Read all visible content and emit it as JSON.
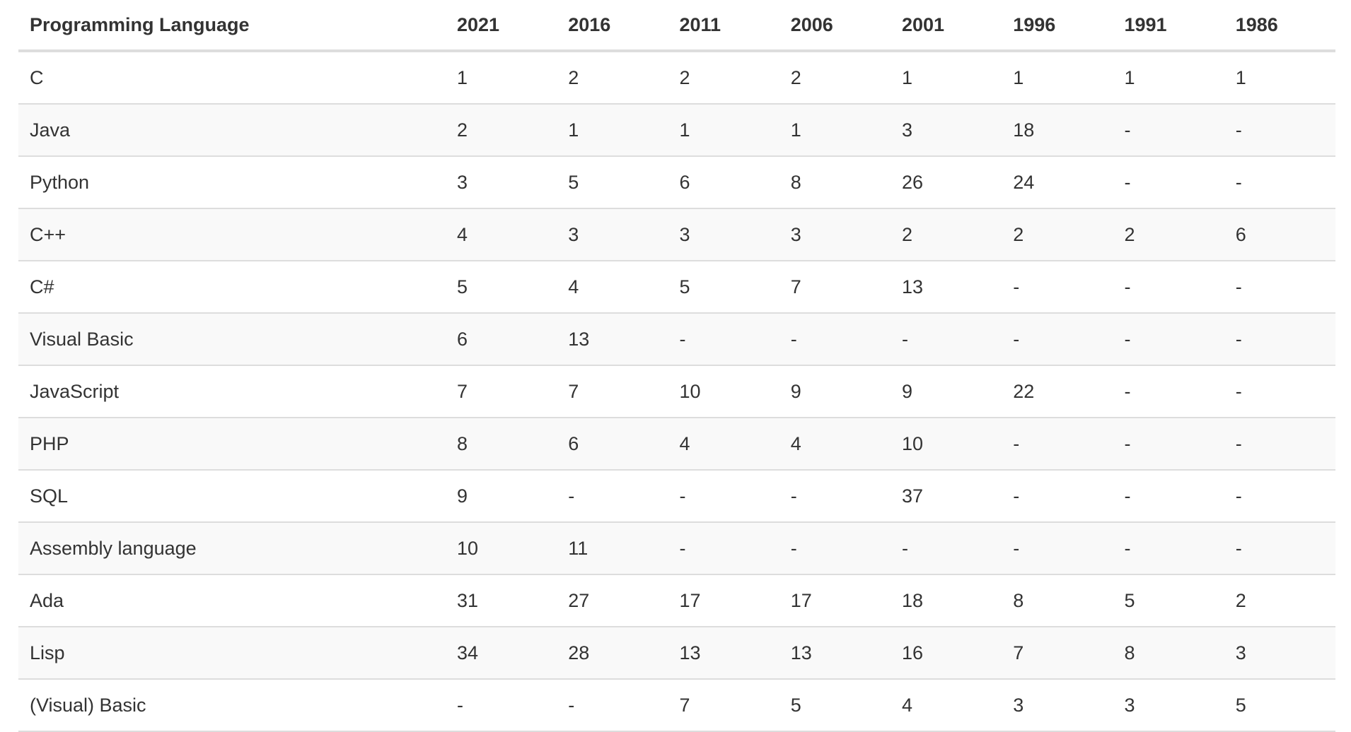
{
  "table": {
    "headers": [
      "Programming Language",
      "2021",
      "2016",
      "2011",
      "2006",
      "2001",
      "1996",
      "1991",
      "1986"
    ],
    "rows": [
      [
        "C",
        "1",
        "2",
        "2",
        "2",
        "1",
        "1",
        "1",
        "1"
      ],
      [
        "Java",
        "2",
        "1",
        "1",
        "1",
        "3",
        "18",
        "-",
        "-"
      ],
      [
        "Python",
        "3",
        "5",
        "6",
        "8",
        "26",
        "24",
        "-",
        "-"
      ],
      [
        "C++",
        "4",
        "3",
        "3",
        "3",
        "2",
        "2",
        "2",
        "6"
      ],
      [
        "C#",
        "5",
        "4",
        "5",
        "7",
        "13",
        "-",
        "-",
        "-"
      ],
      [
        "Visual Basic",
        "6",
        "13",
        "-",
        "-",
        "-",
        "-",
        "-",
        "-"
      ],
      [
        "JavaScript",
        "7",
        "7",
        "10",
        "9",
        "9",
        "22",
        "-",
        "-"
      ],
      [
        "PHP",
        "8",
        "6",
        "4",
        "4",
        "10",
        "-",
        "-",
        "-"
      ],
      [
        "SQL",
        "9",
        "-",
        "-",
        "-",
        "37",
        "-",
        "-",
        "-"
      ],
      [
        "Assembly language",
        "10",
        "11",
        "-",
        "-",
        "-",
        "-",
        "-",
        "-"
      ],
      [
        "Ada",
        "31",
        "27",
        "17",
        "17",
        "18",
        "8",
        "5",
        "2"
      ],
      [
        "Lisp",
        "34",
        "28",
        "13",
        "13",
        "16",
        "7",
        "8",
        "3"
      ],
      [
        "(Visual) Basic",
        "-",
        "-",
        "7",
        "5",
        "4",
        "3",
        "3",
        "5"
      ]
    ]
  }
}
